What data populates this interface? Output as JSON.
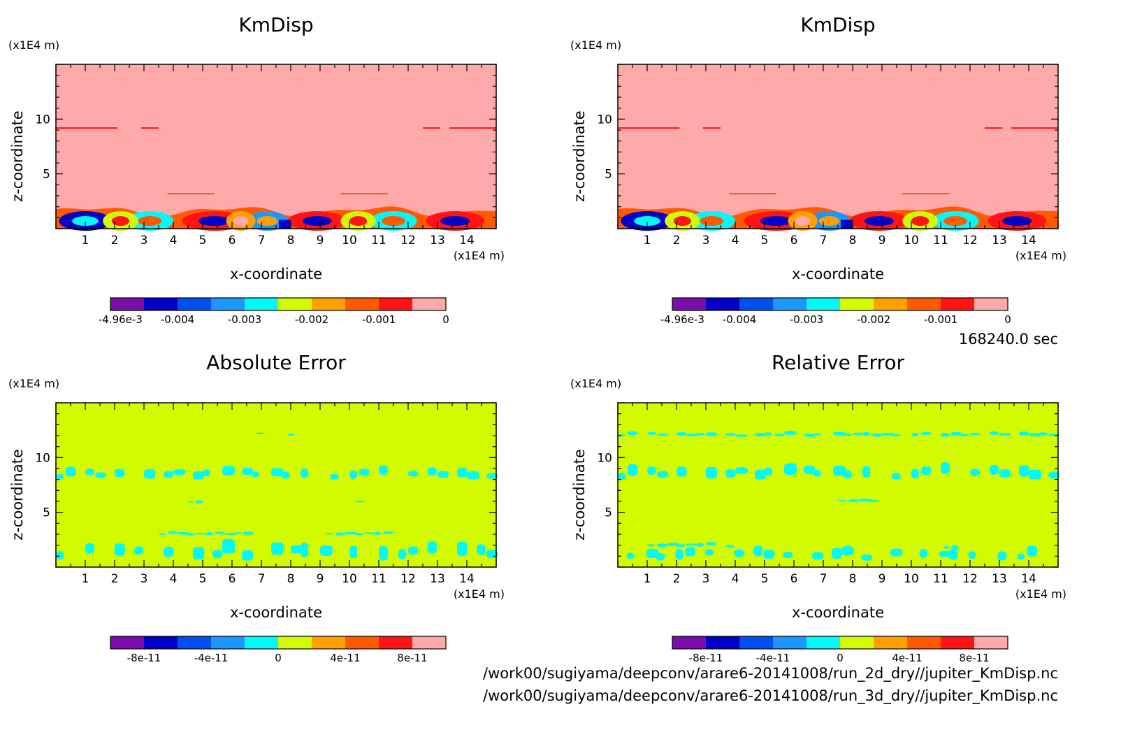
{
  "colors": {
    "levels": [
      "#7a0ead",
      "#0000c8",
      "#0050f0",
      "#1e96ff",
      "#00fafa",
      "#d2fa00",
      "#ffa000",
      "#ff5a00",
      "#ff1414",
      "#ffaaaa"
    ],
    "line": "#000000"
  },
  "time_label": "168240.0 sec",
  "footer": {
    "path_1": "/work00/sugiyama/deepconv/arare6-20141008/run_2d_dry//jupiter_KmDisp.nc",
    "path_2": "/work00/sugiyama/deepconv/arare6-20141008/run_3d_dry//jupiter_KmDisp.nc"
  },
  "chart_data": [
    {
      "type": "heatmap",
      "title": "KmDisp",
      "xlabel": "x-coordinate",
      "ylabel": "z-coordinate",
      "x_unit": "(x1E4 m)",
      "y_unit": "(x1E4 m)",
      "xlim": [
        0,
        15
      ],
      "ylim": [
        0,
        15
      ],
      "x_ticks": [
        "1",
        "2",
        "3",
        "4",
        "5",
        "6",
        "7",
        "8",
        "9",
        "10",
        "11",
        "12",
        "13",
        "14"
      ],
      "y_ticks": [
        "5",
        "10"
      ],
      "background_level": 9,
      "colorbar": {
        "labels": [
          "-4.96e-3",
          "-0.004",
          "-0.003",
          "-0.002",
          "-0.001",
          "0"
        ]
      }
    },
    {
      "type": "heatmap",
      "title": "KmDisp",
      "xlabel": "x-coordinate",
      "ylabel": "z-coordinate",
      "x_unit": "(x1E4 m)",
      "y_unit": "(x1E4 m)",
      "xlim": [
        0,
        15
      ],
      "ylim": [
        0,
        15
      ],
      "x_ticks": [
        "1",
        "2",
        "3",
        "4",
        "5",
        "6",
        "7",
        "8",
        "9",
        "10",
        "11",
        "12",
        "13",
        "14"
      ],
      "y_ticks": [
        "5",
        "10"
      ],
      "background_level": 9,
      "colorbar": {
        "labels": [
          "-4.96e-3",
          "-0.004",
          "-0.003",
          "-0.002",
          "-0.001",
          "0"
        ]
      }
    },
    {
      "type": "heatmap",
      "title": "Absolute Error",
      "xlabel": "x-coordinate",
      "ylabel": "z-coordinate",
      "x_unit": "(x1E4 m)",
      "y_unit": "(x1E4 m)",
      "xlim": [
        0,
        15
      ],
      "ylim": [
        0,
        15
      ],
      "x_ticks": [
        "1",
        "2",
        "3",
        "4",
        "5",
        "6",
        "7",
        "8",
        "9",
        "10",
        "11",
        "12",
        "13",
        "14"
      ],
      "y_ticks": [
        "5",
        "10"
      ],
      "background_level": 5,
      "colorbar": {
        "labels": [
          "-8e-11",
          "-4e-11",
          "0",
          "4e-11",
          "8e-11"
        ]
      }
    },
    {
      "type": "heatmap",
      "title": "Relative Error",
      "xlabel": "x-coordinate",
      "ylabel": "z-coordinate",
      "x_unit": "(x1E4 m)",
      "y_unit": "(x1E4 m)",
      "xlim": [
        0,
        15
      ],
      "ylim": [
        0,
        15
      ],
      "x_ticks": [
        "1",
        "2",
        "3",
        "4",
        "5",
        "6",
        "7",
        "8",
        "9",
        "10",
        "11",
        "12",
        "13",
        "14"
      ],
      "y_ticks": [
        "5",
        "10"
      ],
      "background_level": 5,
      "colorbar": {
        "labels": [
          "-8e-11",
          "-4e-11",
          "0",
          "4e-11",
          "8e-11"
        ]
      }
    }
  ]
}
